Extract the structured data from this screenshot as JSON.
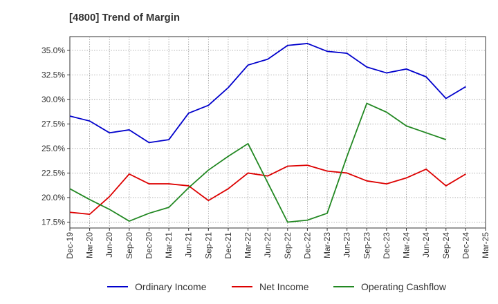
{
  "chart_data": {
    "type": "line",
    "title": "[4800]  Trend of Margin",
    "xlabel": "",
    "ylabel": "",
    "categories": [
      "Dec-19",
      "Mar-20",
      "Jun-20",
      "Sep-20",
      "Dec-20",
      "Mar-21",
      "Jun-21",
      "Sep-21",
      "Dec-21",
      "Mar-22",
      "Jun-22",
      "Sep-22",
      "Dec-22",
      "Mar-23",
      "Jun-23",
      "Sep-23",
      "Dec-23",
      "Mar-24",
      "Jun-24",
      "Sep-24",
      "Dec-24",
      "Mar-25"
    ],
    "yticks": [
      "17.5%",
      "20.0%",
      "22.5%",
      "25.0%",
      "27.5%",
      "30.0%",
      "32.5%",
      "35.0%"
    ],
    "ytick_values": [
      17.5,
      20.0,
      22.5,
      25.0,
      27.5,
      30.0,
      32.5,
      35.0
    ],
    "ylim": [
      16.9,
      36.4
    ],
    "grid": true,
    "legend_position": "bottom",
    "series": [
      {
        "name": "Ordinary Income",
        "color": "#0000cc",
        "values": [
          28.3,
          27.8,
          26.6,
          26.9,
          25.6,
          25.9,
          28.6,
          29.4,
          31.2,
          33.5,
          34.1,
          35.5,
          35.7,
          34.9,
          34.7,
          33.3,
          32.7,
          33.1,
          32.3,
          30.1,
          31.3,
          null
        ]
      },
      {
        "name": "Net Income",
        "color": "#dd0000",
        "values": [
          18.5,
          18.3,
          20.1,
          22.4,
          21.4,
          21.4,
          21.2,
          19.7,
          20.9,
          22.5,
          22.2,
          23.2,
          23.3,
          22.7,
          22.5,
          21.7,
          21.4,
          22.0,
          22.9,
          21.2,
          22.4,
          null
        ]
      },
      {
        "name": "Operating Cashflow",
        "color": "#228822",
        "values": [
          20.9,
          19.8,
          18.8,
          17.6,
          18.4,
          19.0,
          21.0,
          22.8,
          24.2,
          25.5,
          21.5,
          17.5,
          17.7,
          18.4,
          24.2,
          29.6,
          28.7,
          27.3,
          26.6,
          25.9,
          null,
          null
        ]
      }
    ]
  }
}
